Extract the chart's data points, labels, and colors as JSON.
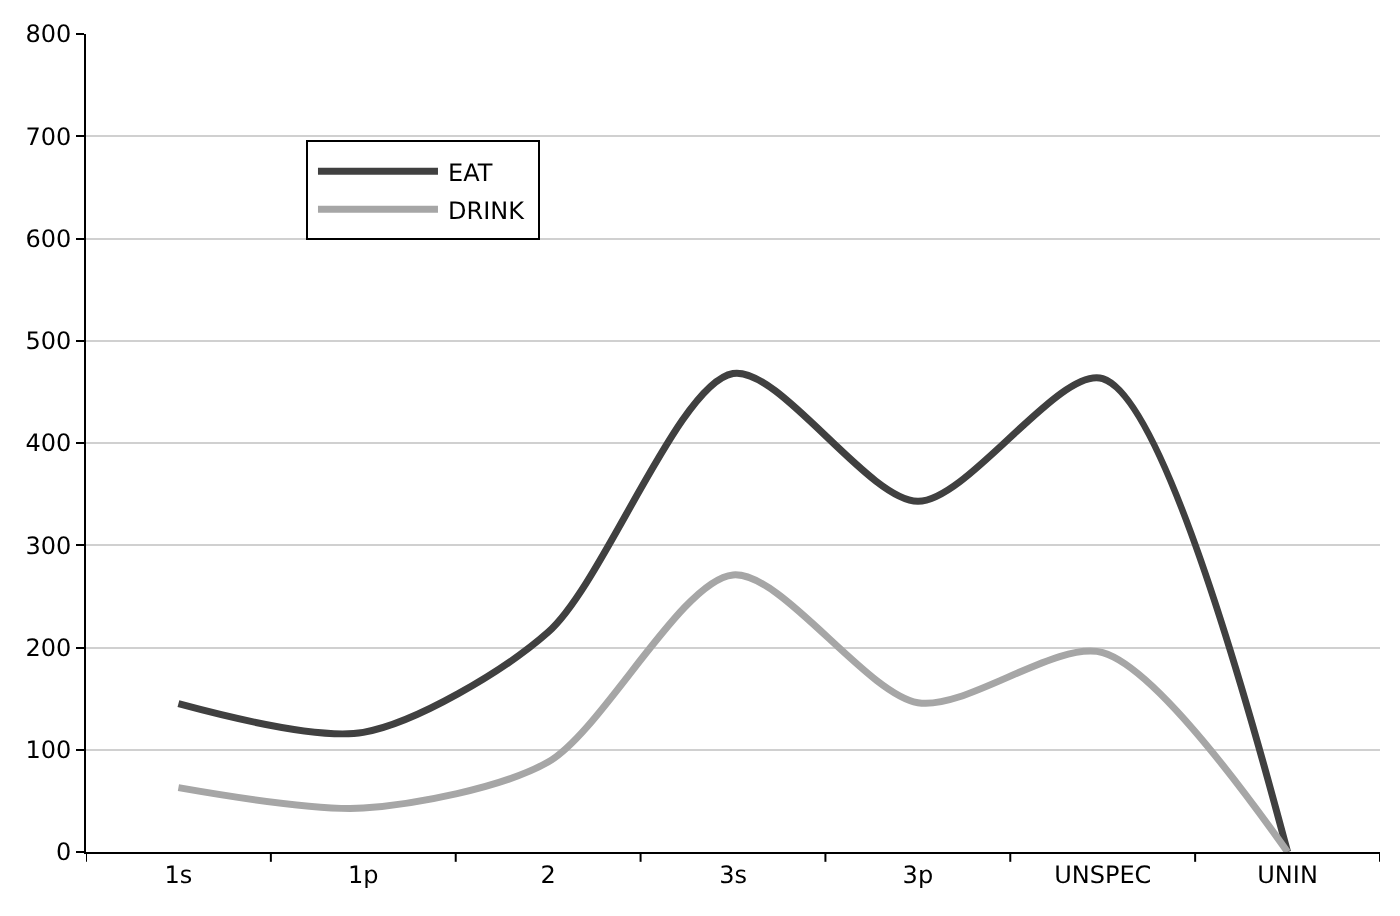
{
  "chart_data": {
    "type": "line",
    "categories": [
      "1s",
      "1p",
      "2",
      "3s",
      "3p",
      "UNSPEC",
      "UNIN"
    ],
    "series": [
      {
        "name": "EAT",
        "color": "#404040",
        "values": [
          145,
          117,
          215,
          468,
          343,
          463,
          0
        ]
      },
      {
        "name": "DRINK",
        "color": "#a6a6a6",
        "values": [
          63,
          43,
          88,
          271,
          146,
          195,
          0
        ]
      }
    ],
    "ylim": [
      0,
      800
    ],
    "yticks": [
      0,
      100,
      200,
      300,
      400,
      500,
      600,
      700,
      800
    ],
    "grid": "y",
    "legend": "top left",
    "marker": "none",
    "line_style": "solid"
  }
}
